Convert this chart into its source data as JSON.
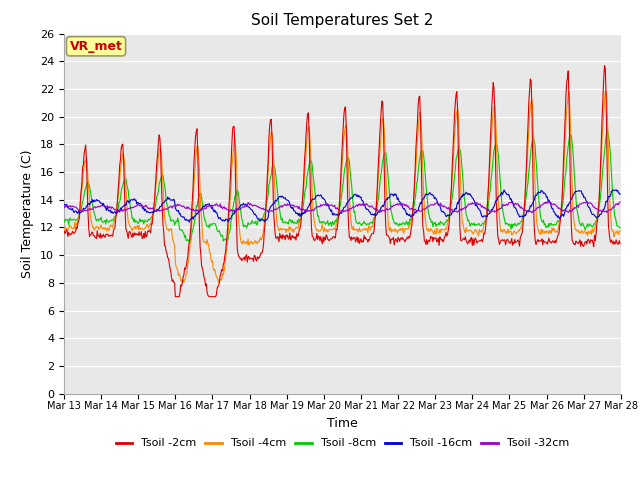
{
  "title": "Soil Temperatures Set 2",
  "xlabel": "Time",
  "ylabel": "Soil Temperature (C)",
  "ylim": [
    0,
    26
  ],
  "yticks": [
    0,
    2,
    4,
    6,
    8,
    10,
    12,
    14,
    16,
    18,
    20,
    22,
    24,
    26
  ],
  "annotation_text": "VR_met",
  "annotation_color": "#cc0000",
  "annotation_bg": "#ffff99",
  "annotation_border": "#999966",
  "bg_color": "#e8e8e8",
  "series_colors": [
    "#dd0000",
    "#ff8800",
    "#00cc00",
    "#0000cc",
    "#9900cc"
  ],
  "series_labels": [
    "Tsoil -2cm",
    "Tsoil -4cm",
    "Tsoil -8cm",
    "Tsoil -16cm",
    "Tsoil -32cm"
  ],
  "x_tick_labels": [
    "Mar 13",
    "Mar 14",
    "Mar 15",
    "Mar 16",
    "Mar 17",
    "Mar 18",
    "Mar 19",
    "Mar 20",
    "Mar 21",
    "Mar 22",
    "Mar 23",
    "Mar 24",
    "Mar 25",
    "Mar 26",
    "Mar 27",
    "Mar 28"
  ],
  "n_days": 15,
  "pts_per_day": 48
}
